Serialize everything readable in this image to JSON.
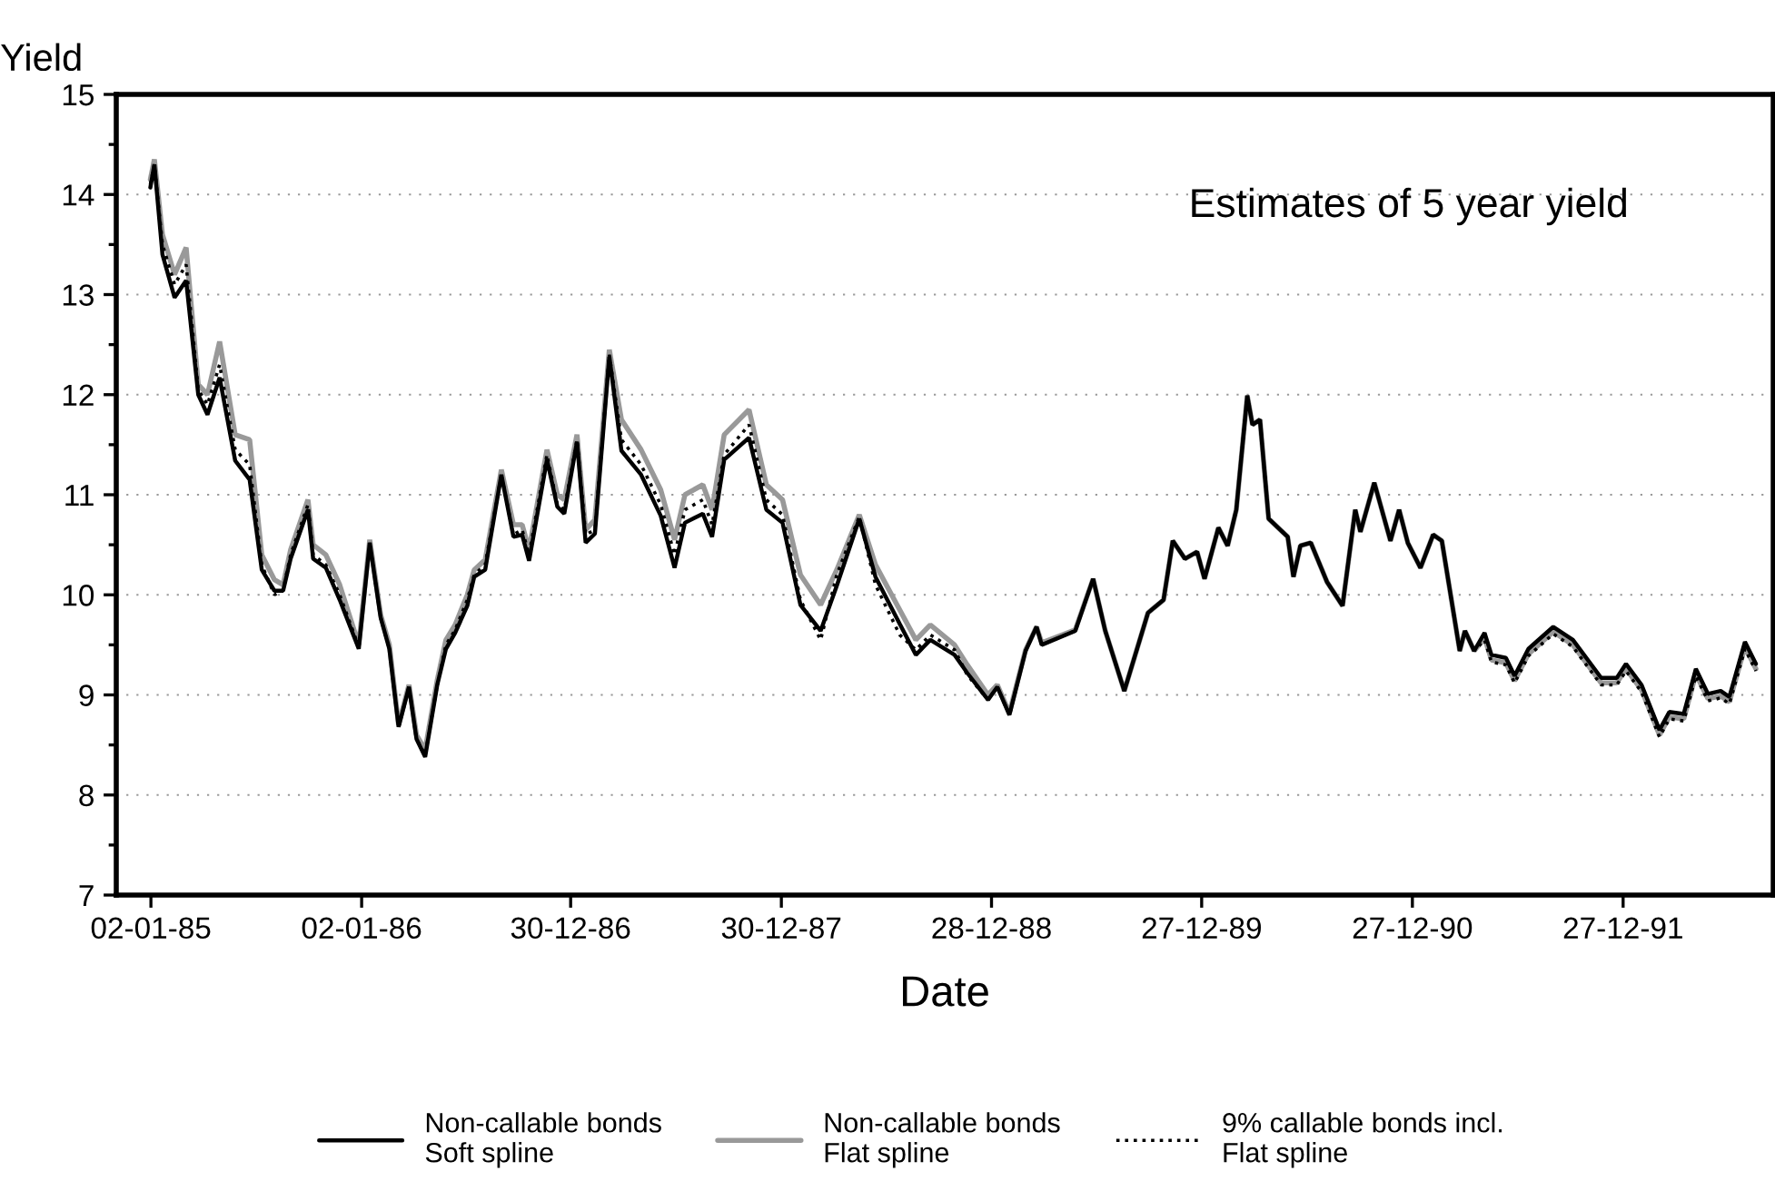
{
  "chart_data": {
    "type": "line",
    "ylabel": "Yield",
    "xlabel": "Date",
    "annotations": [
      "Estimates of 5 year yield"
    ],
    "x": [
      "1985-01-01",
      "1985-01-08",
      "1985-01-22",
      "1985-02-12",
      "1985-03-04",
      "1985-03-25",
      "1985-04-10",
      "1985-05-01",
      "1985-05-28",
      "1985-06-22",
      "1985-07-13",
      "1985-08-04",
      "1985-08-19",
      "1985-09-01",
      "1985-10-01",
      "1985-10-10",
      "1985-11-01",
      "1985-11-25",
      "1985-12-28",
      "1986-01-16",
      "1986-02-04",
      "1986-02-19",
      "1986-03-07",
      "1986-03-25",
      "1986-04-07",
      "1986-04-22",
      "1986-05-13",
      "1986-05-28",
      "1986-06-13",
      "1986-07-04",
      "1986-07-16",
      "1986-08-04",
      "1986-09-01",
      "1986-09-22",
      "1986-10-07",
      "1986-10-19",
      "1986-11-19",
      "1986-12-07",
      "1986-12-19",
      "1987-01-10",
      "1987-01-25",
      "1987-02-10",
      "1987-03-07",
      "1987-03-28",
      "1987-05-01",
      "1987-06-04",
      "1987-06-28",
      "1987-07-16",
      "1987-08-16",
      "1987-09-01",
      "1987-09-22",
      "1987-11-04",
      "1987-12-04",
      "1988-01-01",
      "1988-02-01",
      "1988-03-07",
      "1988-04-04",
      "1988-05-13",
      "1988-06-10",
      "1988-07-22",
      "1988-08-19",
      "1988-09-13",
      "1988-10-25",
      "1988-11-16",
      "1988-12-22",
      "1989-01-07",
      "1989-01-28",
      "1989-02-25",
      "1989-03-16",
      "1989-03-25",
      "1989-05-22",
      "1989-06-22",
      "1989-07-13",
      "1989-08-15",
      "1989-09-25",
      "1989-10-22",
      "1989-11-07",
      "1989-11-28",
      "1989-12-19",
      "1990-01-01",
      "1990-01-25",
      "1990-02-10",
      "1990-02-25",
      "1990-03-16",
      "1990-03-25",
      "1990-04-07",
      "1990-04-22",
      "1990-05-25",
      "1990-06-04",
      "1990-06-16",
      "1990-07-04",
      "1990-08-01",
      "1990-08-28",
      "1990-09-19",
      "1990-09-28",
      "1990-10-22",
      "1990-11-19",
      "1990-12-04",
      "1990-12-19",
      "1991-01-10",
      "1991-02-01",
      "1991-02-16",
      "1991-03-19",
      "1991-03-28",
      "1991-04-13",
      "1991-05-01",
      "1991-05-13",
      "1991-06-07",
      "1991-06-22",
      "1991-07-16",
      "1991-08-28",
      "1991-10-01",
      "1991-11-19",
      "1991-12-16",
      "1992-01-01",
      "1992-01-28",
      "1992-02-28",
      "1992-03-16",
      "1992-04-10",
      "1992-05-01",
      "1992-05-22",
      "1992-06-13",
      "1992-06-28",
      "1992-07-25",
      "1992-08-13"
    ],
    "series": [
      {
        "name": "Non-callable bonds\nSoft spline",
        "color": "#000000",
        "line_style": "solid",
        "values": [
          14.07,
          14.3,
          13.4,
          12.97,
          13.14,
          12.0,
          11.8,
          12.17,
          11.34,
          11.15,
          10.25,
          10.04,
          10.04,
          10.36,
          10.85,
          10.36,
          10.27,
          9.95,
          9.46,
          10.52,
          9.77,
          9.46,
          8.68,
          9.08,
          8.56,
          8.38,
          9.1,
          9.46,
          9.62,
          9.89,
          10.18,
          10.25,
          11.2,
          10.58,
          10.6,
          10.34,
          11.35,
          10.88,
          10.81,
          11.53,
          10.52,
          10.61,
          12.38,
          11.44,
          11.2,
          10.79,
          10.27,
          10.72,
          10.81,
          10.58,
          11.35,
          11.57,
          10.85,
          10.72,
          9.9,
          9.64,
          10.09,
          10.76,
          10.18,
          9.71,
          9.4,
          9.55,
          9.4,
          9.22,
          8.95,
          9.08,
          8.8,
          9.44,
          9.68,
          9.5,
          9.64,
          10.16,
          9.64,
          9.04,
          9.82,
          9.95,
          10.54,
          10.36,
          10.43,
          10.16,
          10.67,
          10.49,
          10.85,
          11.99,
          11.7,
          11.75,
          10.76,
          10.58,
          10.18,
          10.49,
          10.52,
          10.13,
          9.89,
          10.85,
          10.63,
          11.12,
          10.54,
          10.85,
          10.52,
          10.27,
          10.6,
          10.54,
          9.44,
          9.64,
          9.44,
          9.62,
          9.4,
          9.37,
          9.19,
          9.46,
          9.68,
          9.55,
          9.17,
          9.17,
          9.31,
          9.1,
          8.65,
          8.83,
          8.81,
          9.26,
          9.01,
          9.04,
          8.98,
          9.53,
          9.31
        ]
      },
      {
        "name": "Non-callable bonds\nFlat spline",
        "color": "#999999",
        "line_style": "solid",
        "values": [
          14.15,
          14.35,
          13.6,
          13.2,
          13.47,
          12.1,
          12.0,
          12.53,
          11.6,
          11.55,
          10.4,
          10.15,
          10.1,
          10.45,
          10.95,
          10.5,
          10.4,
          10.1,
          9.5,
          10.55,
          9.8,
          9.5,
          8.7,
          9.1,
          8.6,
          8.45,
          9.15,
          9.55,
          9.7,
          10.0,
          10.25,
          10.35,
          11.25,
          10.7,
          10.7,
          10.45,
          11.45,
          11.0,
          10.95,
          11.6,
          10.65,
          10.75,
          12.45,
          11.75,
          11.45,
          11.05,
          10.55,
          11.0,
          11.1,
          10.85,
          11.6,
          11.85,
          11.1,
          10.95,
          10.2,
          9.9,
          10.25,
          10.8,
          10.3,
          9.85,
          9.55,
          9.7,
          9.5,
          9.3,
          9.0,
          9.1,
          8.82,
          9.45,
          9.68,
          9.52,
          9.65,
          10.16,
          9.64,
          9.04,
          9.82,
          9.95,
          10.54,
          10.36,
          10.43,
          10.16,
          10.67,
          10.49,
          10.85,
          11.99,
          11.7,
          11.75,
          10.76,
          10.58,
          10.18,
          10.49,
          10.52,
          10.13,
          9.89,
          10.85,
          10.63,
          11.12,
          10.54,
          10.85,
          10.52,
          10.27,
          10.6,
          10.54,
          9.44,
          9.64,
          9.44,
          9.57,
          9.35,
          9.32,
          9.14,
          9.41,
          9.63,
          9.5,
          9.12,
          9.12,
          9.26,
          9.05,
          8.6,
          8.78,
          8.76,
          9.21,
          8.96,
          8.99,
          8.93,
          9.48,
          9.26
        ]
      },
      {
        "name": "9% callable bonds incl.\nFlat spline",
        "color": "#000000",
        "line_style": "dotted",
        "values": [
          14.1,
          14.3,
          13.5,
          13.1,
          13.3,
          12.05,
          11.9,
          12.3,
          11.45,
          11.3,
          10.3,
          10.0,
          10.05,
          10.4,
          10.9,
          10.4,
          10.3,
          10.0,
          9.48,
          10.52,
          9.77,
          9.46,
          8.68,
          9.08,
          8.56,
          8.4,
          9.1,
          9.5,
          9.65,
          9.95,
          10.2,
          10.3,
          11.2,
          10.6,
          10.65,
          10.4,
          11.4,
          10.9,
          10.85,
          11.55,
          10.6,
          10.65,
          12.4,
          11.55,
          11.3,
          10.9,
          10.4,
          10.85,
          10.95,
          10.7,
          11.4,
          11.7,
          10.95,
          10.8,
          9.95,
          9.55,
          10.2,
          10.78,
          10.1,
          9.6,
          9.45,
          9.6,
          9.45,
          9.2,
          8.95,
          9.08,
          8.8,
          9.44,
          9.68,
          9.5,
          9.64,
          10.16,
          9.64,
          9.04,
          9.82,
          9.95,
          10.54,
          10.36,
          10.43,
          10.16,
          10.67,
          10.49,
          10.85,
          11.99,
          11.7,
          11.75,
          10.76,
          10.58,
          10.18,
          10.49,
          10.52,
          10.13,
          9.89,
          10.85,
          10.63,
          11.12,
          10.54,
          10.85,
          10.52,
          10.27,
          10.6,
          10.54,
          9.44,
          9.64,
          9.44,
          9.55,
          9.33,
          9.3,
          9.12,
          9.39,
          9.61,
          9.48,
          9.1,
          9.1,
          9.24,
          9.03,
          8.58,
          8.76,
          8.74,
          9.19,
          8.94,
          8.97,
          8.91,
          9.46,
          9.24
        ]
      }
    ],
    "xlim": [
      "1984-11-03",
      "1992-09-12"
    ],
    "xticks": [
      {
        "value": "1985-01-02",
        "label": "02-01-85"
      },
      {
        "value": "1986-01-02",
        "label": "02-01-86"
      },
      {
        "value": "1986-12-30",
        "label": "30-12-86"
      },
      {
        "value": "1987-12-30",
        "label": "30-12-87"
      },
      {
        "value": "1988-12-28",
        "label": "28-12-88"
      },
      {
        "value": "1989-12-27",
        "label": "27-12-89"
      },
      {
        "value": "1990-12-27",
        "label": "27-12-90"
      },
      {
        "value": "1991-12-27",
        "label": "27-12-91"
      }
    ],
    "ylim": [
      7,
      15
    ],
    "yticks": [
      7,
      {
        "value": 7.5,
        "label": null
      },
      8,
      {
        "value": 8.5,
        "label": null
      },
      9,
      {
        "value": 9.5,
        "label": null
      },
      10,
      {
        "value": 10.5,
        "label": null
      },
      11,
      {
        "value": 11.5,
        "label": null
      },
      12,
      {
        "value": 12.5,
        "label": null
      },
      13,
      {
        "value": 13.5,
        "label": null
      },
      14,
      {
        "value": 14.5,
        "label": null
      },
      15
    ],
    "grid": "y",
    "legend": "bottom",
    "marker": "none"
  }
}
